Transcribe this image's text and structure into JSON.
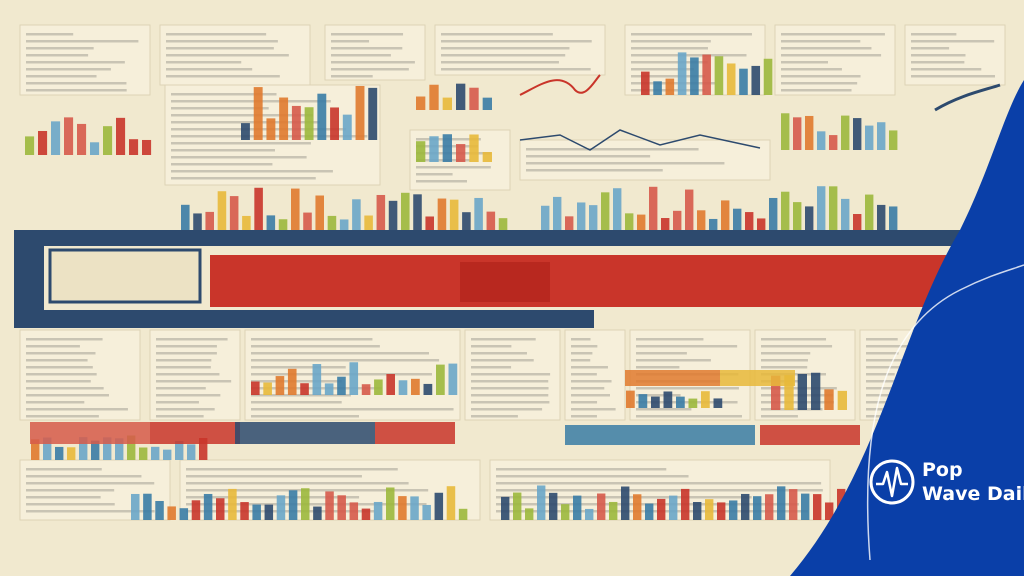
{
  "brand": {
    "line1": "Pop",
    "line2": "Wave Daily"
  }
}
